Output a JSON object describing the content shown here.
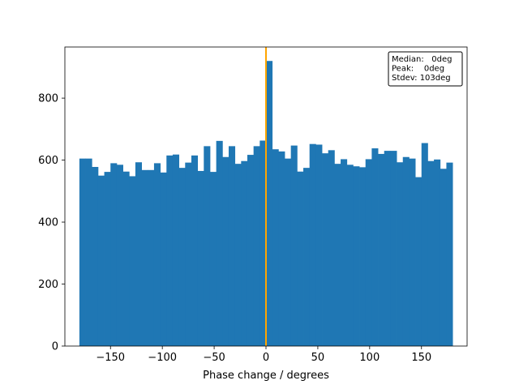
{
  "chart_data": {
    "type": "bar",
    "title": "",
    "xlabel": "Phase change / degrees",
    "ylabel": "",
    "xlim": [
      -194,
      194
    ],
    "ylim": [
      0,
      965
    ],
    "xticks": [
      -150,
      -100,
      -50,
      0,
      50,
      100,
      150
    ],
    "xtick_labels": [
      "−150",
      "−100",
      "−50",
      "0",
      "50",
      "100",
      "150"
    ],
    "yticks": [
      0,
      200,
      400,
      600,
      800
    ],
    "ytick_labels": [
      "0",
      "200",
      "400",
      "600",
      "800"
    ],
    "grid": false,
    "bin_range": [
      -180,
      180
    ],
    "values": [
      605,
      605,
      578,
      550,
      562,
      590,
      585,
      563,
      548,
      593,
      568,
      568,
      590,
      560,
      615,
      618,
      575,
      592,
      615,
      565,
      645,
      562,
      662,
      610,
      645,
      588,
      597,
      617,
      645,
      663,
      920,
      635,
      628,
      605,
      647,
      563,
      575,
      652,
      650,
      622,
      632,
      588,
      603,
      585,
      580,
      577,
      603,
      638,
      620,
      630,
      630,
      593,
      610,
      605,
      545,
      655,
      597,
      602,
      572,
      592
    ],
    "bar_color": "#1f77b4",
    "vline": {
      "x": 0,
      "color": "#ffa500"
    },
    "annotation_lines": [
      "Median:   0deg",
      "Peak:    0deg",
      "Stdev: 103deg"
    ],
    "annotation_placement": "top-right"
  }
}
